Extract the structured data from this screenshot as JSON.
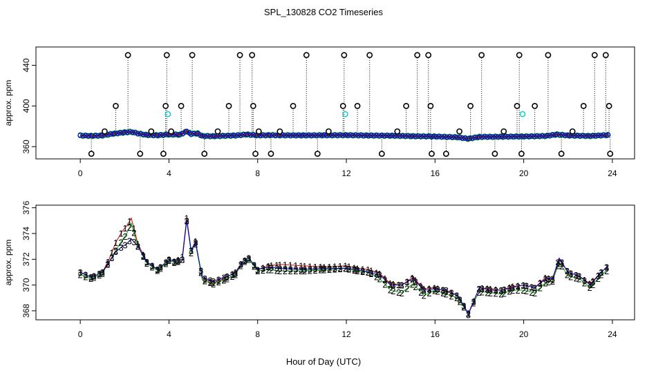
{
  "chart_data": [
    {
      "type": "line",
      "title": "SPL_130828  CO2 Timeseries",
      "ylabel": "approx. ppm",
      "xlim": [
        -2,
        25
      ],
      "ylim": [
        348,
        458
      ],
      "x_ticks": [
        0,
        4,
        8,
        12,
        16,
        20,
        24
      ],
      "y_ticks": [
        360,
        400,
        440
      ],
      "grid": false,
      "series_colors": {
        "1": "#cc0000",
        "2": "#00aa00",
        "3": "#0000cc",
        "4": "#00cccc",
        "outlier": "#000000"
      },
      "series": [
        {
          "name": "",
          "x": [
            0.0,
            0.5,
            1.0,
            1.5,
            2.0,
            2.3,
            2.6,
            3.0,
            3.5,
            4.0,
            4.5,
            4.8,
            5.0,
            5.3,
            5.5,
            6.0,
            7.0,
            7.5,
            8.0,
            8.5,
            9.0,
            10.0,
            11.0,
            12.0,
            13.0,
            14.0,
            15.0,
            16.0,
            17.0,
            17.5,
            18.0,
            19.0,
            20.0,
            21.0,
            21.5,
            22.0,
            23.0,
            23.8
          ],
          "values": [
            371,
            370.6,
            371,
            372.8,
            374,
            374.6,
            373,
            371.5,
            371.2,
            372,
            371.8,
            375,
            372.5,
            373,
            370.5,
            370.3,
            371,
            372,
            371.1,
            371.3,
            371.2,
            371.1,
            371.2,
            371.3,
            371,
            370.8,
            370.3,
            370,
            369.3,
            367.8,
            369.6,
            369.8,
            370,
            370.5,
            372,
            371,
            370.5,
            371.4
          ]
        }
      ],
      "outliers": {
        "x": [
          0.5,
          1.1,
          1.6,
          2.15,
          2.7,
          3.2,
          3.75,
          3.85,
          3.9,
          4.1,
          4.55,
          5.05,
          5.6,
          6.2,
          6.7,
          7.2,
          7.75,
          7.8,
          7.9,
          8.05,
          8.6,
          9.0,
          9.6,
          10.2,
          10.7,
          11.2,
          11.85,
          11.9,
          12.5,
          13.05,
          13.6,
          14.3,
          14.7,
          15.2,
          15.7,
          15.8,
          15.85,
          16.5,
          17.1,
          17.6,
          18.1,
          18.7,
          19.1,
          19.7,
          19.8,
          19.9,
          20.5,
          21.1,
          21.7,
          22.2,
          22.7,
          23.2,
          23.7,
          23.85,
          23.9
        ],
        "y": [
          353,
          375,
          400,
          450,
          353,
          375,
          353,
          400,
          450,
          375,
          400,
          450,
          353,
          375,
          400,
          450,
          450,
          400,
          353,
          375,
          353,
          375,
          400,
          450,
          353,
          375,
          400,
          450,
          400,
          450,
          353,
          375,
          400,
          450,
          450,
          400,
          353,
          353,
          375,
          400,
          450,
          353,
          375,
          400,
          450,
          353,
          400,
          450,
          353,
          375,
          400,
          450,
          450,
          400,
          353
        ]
      },
      "cyan_points": {
        "x": [
          3.95,
          11.95,
          19.95
        ],
        "y": [
          392,
          392,
          392
        ]
      }
    },
    {
      "type": "line",
      "title": "",
      "xlabel": "Hour of Day (UTC)",
      "ylabel": "approx. ppm",
      "xlim": [
        -2,
        25
      ],
      "ylim": [
        367.3,
        376.2
      ],
      "x_ticks": [
        0,
        4,
        8,
        12,
        16,
        20,
        24
      ],
      "y_ticks": [
        368,
        370,
        372,
        374,
        376
      ],
      "grid": false,
      "markers": [
        "1",
        "2",
        "3"
      ],
      "series_colors": {
        "1": "#cc0000",
        "2": "#00aa00",
        "3": "#0000cc"
      },
      "series": [
        {
          "name": "",
          "x": [
            0.0,
            0.5,
            1.0,
            1.3,
            1.6,
            1.9,
            2.1,
            2.3,
            2.6,
            3.0,
            3.5,
            4.0,
            4.3,
            4.6,
            4.8,
            5.0,
            5.2,
            5.5,
            6.0,
            6.5,
            7.0,
            7.3,
            7.6,
            8.0,
            8.5,
            9.0,
            10.0,
            11.0,
            12.0,
            12.5,
            13.0,
            13.5,
            14.0,
            14.5,
            15.0,
            15.5,
            16.0,
            16.5,
            17.0,
            17.3,
            17.5,
            18.0,
            18.5,
            19.0,
            19.5,
            20.0,
            20.5,
            21.0,
            21.3,
            21.6,
            22.0,
            22.5,
            23.0,
            23.5,
            23.8
          ],
          "values": [
            371.0,
            370.6,
            371.0,
            372.0,
            373.3,
            374.2,
            374.6,
            375.2,
            373.2,
            371.8,
            371.2,
            372.0,
            371.8,
            372.2,
            375.2,
            372.7,
            373.4,
            370.5,
            370.2,
            370.5,
            371.0,
            371.8,
            372.1,
            371.2,
            371.5,
            371.6,
            371.5,
            371.4,
            371.5,
            371.3,
            371.2,
            370.9,
            370.1,
            370.0,
            370.6,
            369.7,
            369.8,
            369.5,
            369.2,
            368.4,
            367.8,
            369.8,
            369.7,
            369.6,
            369.9,
            370.0,
            369.8,
            370.6,
            370.4,
            372.0,
            371.0,
            370.7,
            370.1,
            371.0,
            371.5
          ]
        },
        {
          "name": "",
          "x": [
            0.0,
            0.5,
            1.0,
            1.3,
            1.6,
            1.9,
            2.1,
            2.3,
            2.6,
            3.0,
            3.5,
            4.0,
            4.3,
            4.6,
            4.8,
            5.0,
            5.2,
            5.5,
            6.0,
            6.5,
            7.0,
            7.3,
            7.6,
            8.0,
            8.5,
            9.0,
            10.0,
            11.0,
            12.0,
            12.5,
            13.0,
            13.5,
            14.0,
            14.5,
            15.0,
            15.5,
            16.0,
            16.5,
            17.0,
            17.3,
            17.5,
            18.0,
            18.5,
            19.0,
            19.5,
            20.0,
            20.5,
            21.0,
            21.3,
            21.6,
            22.0,
            22.5,
            23.0,
            23.5,
            23.8
          ],
          "values": [
            370.8,
            370.5,
            370.9,
            371.8,
            372.7,
            373.5,
            374.0,
            374.8,
            373.0,
            371.7,
            371.1,
            371.9,
            371.7,
            372.0,
            375.0,
            372.5,
            373.2,
            370.4,
            370.1,
            370.4,
            370.8,
            371.7,
            372.0,
            371.1,
            371.2,
            371.1,
            371.1,
            371.2,
            371.3,
            371.1,
            371.0,
            370.5,
            369.6,
            369.4,
            370.1,
            369.2,
            369.6,
            369.3,
            369.0,
            368.3,
            367.8,
            369.5,
            369.4,
            369.3,
            369.6,
            369.6,
            369.4,
            370.2,
            370.3,
            371.8,
            370.7,
            370.5,
            369.8,
            370.8,
            371.2
          ]
        },
        {
          "name": "",
          "x": [
            0.0,
            0.5,
            1.0,
            1.3,
            1.6,
            1.9,
            2.1,
            2.3,
            2.6,
            3.0,
            3.5,
            4.0,
            4.3,
            4.6,
            4.8,
            5.0,
            5.2,
            5.5,
            6.0,
            6.5,
            7.0,
            7.3,
            7.6,
            8.0,
            8.5,
            9.0,
            10.0,
            11.0,
            12.0,
            12.5,
            13.0,
            13.5,
            14.0,
            14.5,
            15.0,
            15.5,
            16.0,
            16.5,
            17.0,
            17.3,
            17.5,
            18.0,
            18.5,
            19.0,
            19.5,
            20.0,
            20.5,
            21.0,
            21.3,
            21.6,
            22.0,
            22.5,
            23.0,
            23.5,
            23.8
          ],
          "values": [
            371.0,
            370.6,
            371.0,
            371.8,
            372.6,
            373.0,
            373.2,
            373.6,
            373.0,
            371.8,
            371.2,
            372.0,
            371.8,
            372.0,
            375.0,
            372.7,
            373.3,
            370.6,
            370.3,
            370.6,
            370.9,
            371.8,
            372.1,
            371.2,
            371.4,
            371.3,
            371.2,
            371.3,
            371.3,
            371.2,
            371.0,
            370.8,
            370.0,
            370.0,
            370.5,
            369.6,
            369.7,
            369.6,
            369.2,
            368.4,
            367.7,
            369.8,
            369.6,
            369.6,
            369.8,
            370.0,
            369.8,
            370.5,
            370.5,
            372.1,
            371.0,
            370.7,
            370.0,
            371.0,
            371.5
          ]
        }
      ]
    }
  ]
}
